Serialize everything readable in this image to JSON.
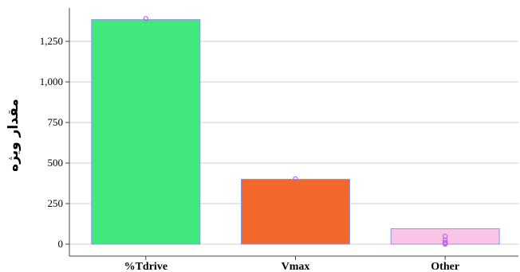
{
  "chart_data": {
    "type": "bar",
    "title": "",
    "xlabel": "",
    "ylabel": "مقدار ویژه",
    "categories": [
      "%Tdrive",
      "Vmax",
      "Other"
    ],
    "values": [
      1384,
      400,
      95
    ],
    "bar_colors": [
      "#41e87c",
      "#f2682c",
      "#f9c4e6"
    ],
    "bar_edge_color": "#8a95e0",
    "point_color": "#b65ce8",
    "points": [
      [
        1390
      ],
      [
        403
      ],
      [
        48,
        25,
        10,
        3,
        0
      ]
    ],
    "yticks": [
      0,
      250,
      500,
      750,
      1000,
      1250
    ],
    "ytick_labels": [
      "0",
      "250",
      "500",
      "750",
      "1,000",
      "1,250"
    ],
    "ylim": [
      -70,
      1450
    ],
    "grid": true,
    "legend": "none"
  }
}
